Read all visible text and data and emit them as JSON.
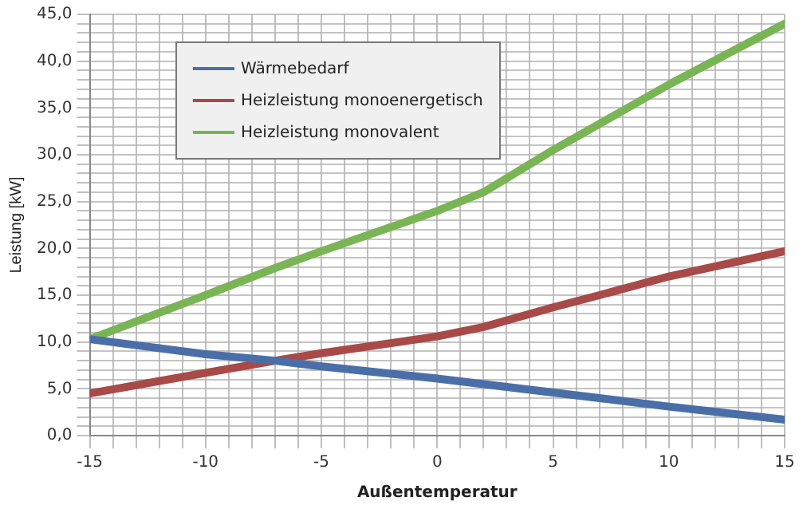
{
  "chart_data": {
    "type": "line",
    "xlabel": "Außentemperatur",
    "ylabel": "Leistung [kW]",
    "x": [
      -15,
      -10,
      -7,
      -5,
      0,
      2,
      5,
      7,
      10,
      15
    ],
    "series": [
      {
        "name": "Wärmebedarf",
        "color": "#4a6fa8",
        "values": [
          10.3,
          8.7,
          8.0,
          7.4,
          6.1,
          5.5,
          4.6,
          4.0,
          3.1,
          1.7
        ]
      },
      {
        "name": "Heizleistung monoenergetisch",
        "color": "#a84a48",
        "values": [
          4.5,
          6.7,
          8.0,
          8.8,
          10.6,
          11.6,
          13.7,
          15.0,
          17.0,
          19.7
        ]
      },
      {
        "name": "Heizleistung monovalent",
        "color": "#7ab555",
        "values": [
          10.3,
          15.0,
          17.9,
          19.7,
          24.0,
          26.0,
          30.5,
          33.3,
          37.5,
          44.0
        ]
      }
    ],
    "xlim": [
      -15,
      15
    ],
    "xticks": [
      -15,
      {
        "value": -14,
        "label": null
      },
      {
        "value": -13,
        "label": null
      },
      {
        "value": -12,
        "label": null
      },
      {
        "value": -11,
        "label": null
      },
      -10,
      {
        "value": -9,
        "label": null
      },
      {
        "value": -8,
        "label": null
      },
      {
        "value": -7,
        "label": null
      },
      {
        "value": -6,
        "label": null
      },
      -5,
      {
        "value": -4,
        "label": null
      },
      {
        "value": -3,
        "label": null
      },
      {
        "value": -2,
        "label": null
      },
      {
        "value": -1,
        "label": null
      },
      0,
      {
        "value": 1,
        "label": null
      },
      {
        "value": 2,
        "label": null
      },
      {
        "value": 3,
        "label": null
      },
      {
        "value": 4,
        "label": null
      },
      5,
      {
        "value": 6,
        "label": null
      },
      {
        "value": 7,
        "label": null
      },
      {
        "value": 8,
        "label": null
      },
      {
        "value": 9,
        "label": null
      },
      10,
      {
        "value": 11,
        "label": null
      },
      {
        "value": 12,
        "label": null
      },
      {
        "value": 13,
        "label": null
      },
      {
        "value": 14,
        "label": null
      },
      15
    ],
    "ylim": [
      0,
      45
    ],
    "yticks": [
      {
        "value": 0,
        "label": "0,0"
      },
      {
        "value": 1,
        "label": null
      },
      {
        "value": 2,
        "label": null
      },
      {
        "value": 3,
        "label": null
      },
      {
        "value": 4,
        "label": null
      },
      {
        "value": 5,
        "label": "5,0"
      },
      {
        "value": 6,
        "label": null
      },
      {
        "value": 7,
        "label": null
      },
      {
        "value": 8,
        "label": null
      },
      {
        "value": 9,
        "label": null
      },
      {
        "value": 10,
        "label": "10,0"
      },
      {
        "value": 11,
        "label": null
      },
      {
        "value": 12,
        "label": null
      },
      {
        "value": 13,
        "label": null
      },
      {
        "value": 14,
        "label": null
      },
      {
        "value": 15,
        "label": "15,0"
      },
      {
        "value": 16,
        "label": null
      },
      {
        "value": 17,
        "label": null
      },
      {
        "value": 18,
        "label": null
      },
      {
        "value": 19,
        "label": null
      },
      {
        "value": 20,
        "label": "20,0"
      },
      {
        "value": 21,
        "label": null
      },
      {
        "value": 22,
        "label": null
      },
      {
        "value": 23,
        "label": null
      },
      {
        "value": 24,
        "label": null
      },
      {
        "value": 25,
        "label": "25,0"
      },
      {
        "value": 26,
        "label": null
      },
      {
        "value": 27,
        "label": null
      },
      {
        "value": 28,
        "label": null
      },
      {
        "value": 29,
        "label": null
      },
      {
        "value": 30,
        "label": "30,0"
      },
      {
        "value": 31,
        "label": null
      },
      {
        "value": 32,
        "label": null
      },
      {
        "value": 33,
        "label": null
      },
      {
        "value": 34,
        "label": null
      },
      {
        "value": 35,
        "label": "35,0"
      },
      {
        "value": 36,
        "label": null
      },
      {
        "value": 37,
        "label": null
      },
      {
        "value": 38,
        "label": null
      },
      {
        "value": 39,
        "label": null
      },
      {
        "value": 40,
        "label": "40,0"
      },
      {
        "value": 41,
        "label": null
      },
      {
        "value": 42,
        "label": null
      },
      {
        "value": 43,
        "label": null
      },
      {
        "value": 44,
        "label": null
      },
      {
        "value": 45,
        "label": "45,0"
      }
    ],
    "grid": true,
    "legend": "top left",
    "marker": "none",
    "line_style": "solid"
  }
}
